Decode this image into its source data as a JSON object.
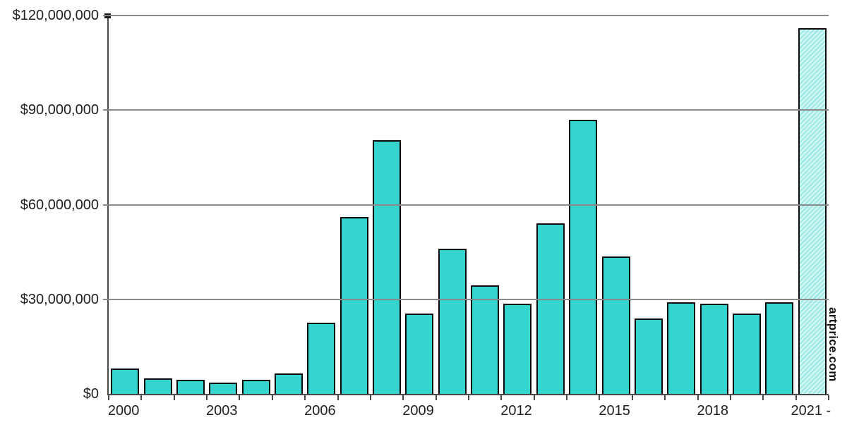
{
  "chart_data": {
    "type": "bar",
    "title": "",
    "xlabel": "",
    "ylabel": "",
    "legend": "none",
    "grid": "horizontal",
    "ylim": [
      0,
      120000000
    ],
    "categories": [
      "2000",
      "2001",
      "2002",
      "2003",
      "2004",
      "2005",
      "2006",
      "2007",
      "2008",
      "2009",
      "2010",
      "2011",
      "2012",
      "2013",
      "2014",
      "2015",
      "2016",
      "2017",
      "2018",
      "2019",
      "2020",
      "2021"
    ],
    "values": [
      8000000,
      5000000,
      4500000,
      3500000,
      4500000,
      6500000,
      22500000,
      56000000,
      80500000,
      25500000,
      46000000,
      34500000,
      28500000,
      54000000,
      87000000,
      43500000,
      24000000,
      29000000,
      28500000,
      25500000,
      29000000,
      116000000
    ],
    "y_ticks": [
      {
        "value": 120000000,
        "label": "$120,000,000"
      },
      {
        "value": 90000000,
        "label": "$90,000,000"
      },
      {
        "value": 60000000,
        "label": "$60,000,000"
      },
      {
        "value": 30000000,
        "label": "$30,000,000"
      },
      {
        "value": 0,
        "label": "$0"
      }
    ],
    "x_tick_labels": [
      {
        "index": 0,
        "label": "2000"
      },
      {
        "index": 3,
        "label": "2003"
      },
      {
        "index": 6,
        "label": "2006"
      },
      {
        "index": 9,
        "label": "2009"
      },
      {
        "index": 12,
        "label": "2012"
      },
      {
        "index": 15,
        "label": "2015"
      },
      {
        "index": 18,
        "label": "2018"
      },
      {
        "index": 21,
        "label": "2021 -"
      }
    ],
    "last_bar_style": "hatched",
    "watermark": "artprice.com",
    "colors": {
      "bar_fill": "#35d4ce",
      "bar_border": "#0b0b0b",
      "last_bar_fill_base": "#cff5f3",
      "last_bar_hatch": "#8fe5e1",
      "gridline": "#8a8a8a",
      "axis": "#4a4a4a",
      "background": "#ffffff",
      "text": "#1f1f1f"
    }
  }
}
